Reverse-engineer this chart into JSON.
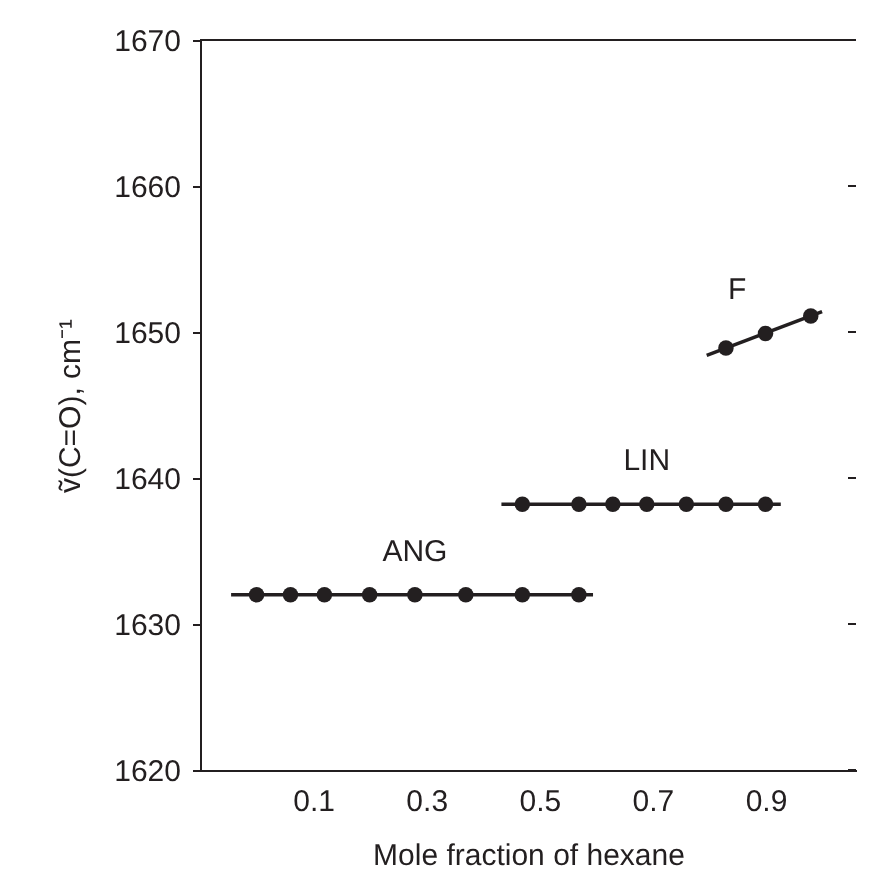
{
  "chart_data": {
    "type": "scatter",
    "xlabel": "Mole fraction of hexane",
    "ylabel": "ṽ(C=O), cm⁻¹",
    "xlim": [
      -0.1,
      1.06
    ],
    "xticks": [
      0.1,
      0.3,
      0.5,
      0.7,
      0.9
    ],
    "ylim": [
      1620,
      1670
    ],
    "yticks": [
      1620,
      1630,
      1640,
      1650,
      1660,
      1670
    ],
    "grid": false,
    "marker": "circle",
    "series": [
      {
        "type": "line",
        "marker": "none",
        "line_style": "solid",
        "color": "#231f20",
        "x": [
          -0.045,
          0.595
        ],
        "values": [
          1632,
          1632
        ]
      },
      {
        "type": "line",
        "marker": "none",
        "line_style": "solid",
        "color": "#231f20",
        "x": [
          0.433,
          0.927
        ],
        "values": [
          1638.2,
          1638.2
        ]
      },
      {
        "type": "line",
        "marker": "none",
        "line_style": "solid",
        "color": "#231f20",
        "x": [
          0.796,
          1.0
        ],
        "values": [
          1648.4,
          1651.4
        ]
      },
      {
        "name": "ANG",
        "color": "#231f20",
        "x": [
          0.0,
          0.06,
          0.12,
          0.2,
          0.28,
          0.37,
          0.47,
          0.57
        ],
        "values": [
          1632,
          1632,
          1632,
          1632,
          1632,
          1632,
          1632,
          1632
        ]
      },
      {
        "name": "LIN",
        "color": "#231f20",
        "x": [
          0.47,
          0.57,
          0.63,
          0.69,
          0.76,
          0.83,
          0.9
        ],
        "values": [
          1638.2,
          1638.2,
          1638.2,
          1638.2,
          1638.2,
          1638.2,
          1638.2
        ]
      },
      {
        "name": "F",
        "color": "#231f20",
        "x": [
          0.83,
          0.9,
          0.98
        ],
        "values": [
          1648.9,
          1649.9,
          1651.1
        ]
      }
    ]
  }
}
